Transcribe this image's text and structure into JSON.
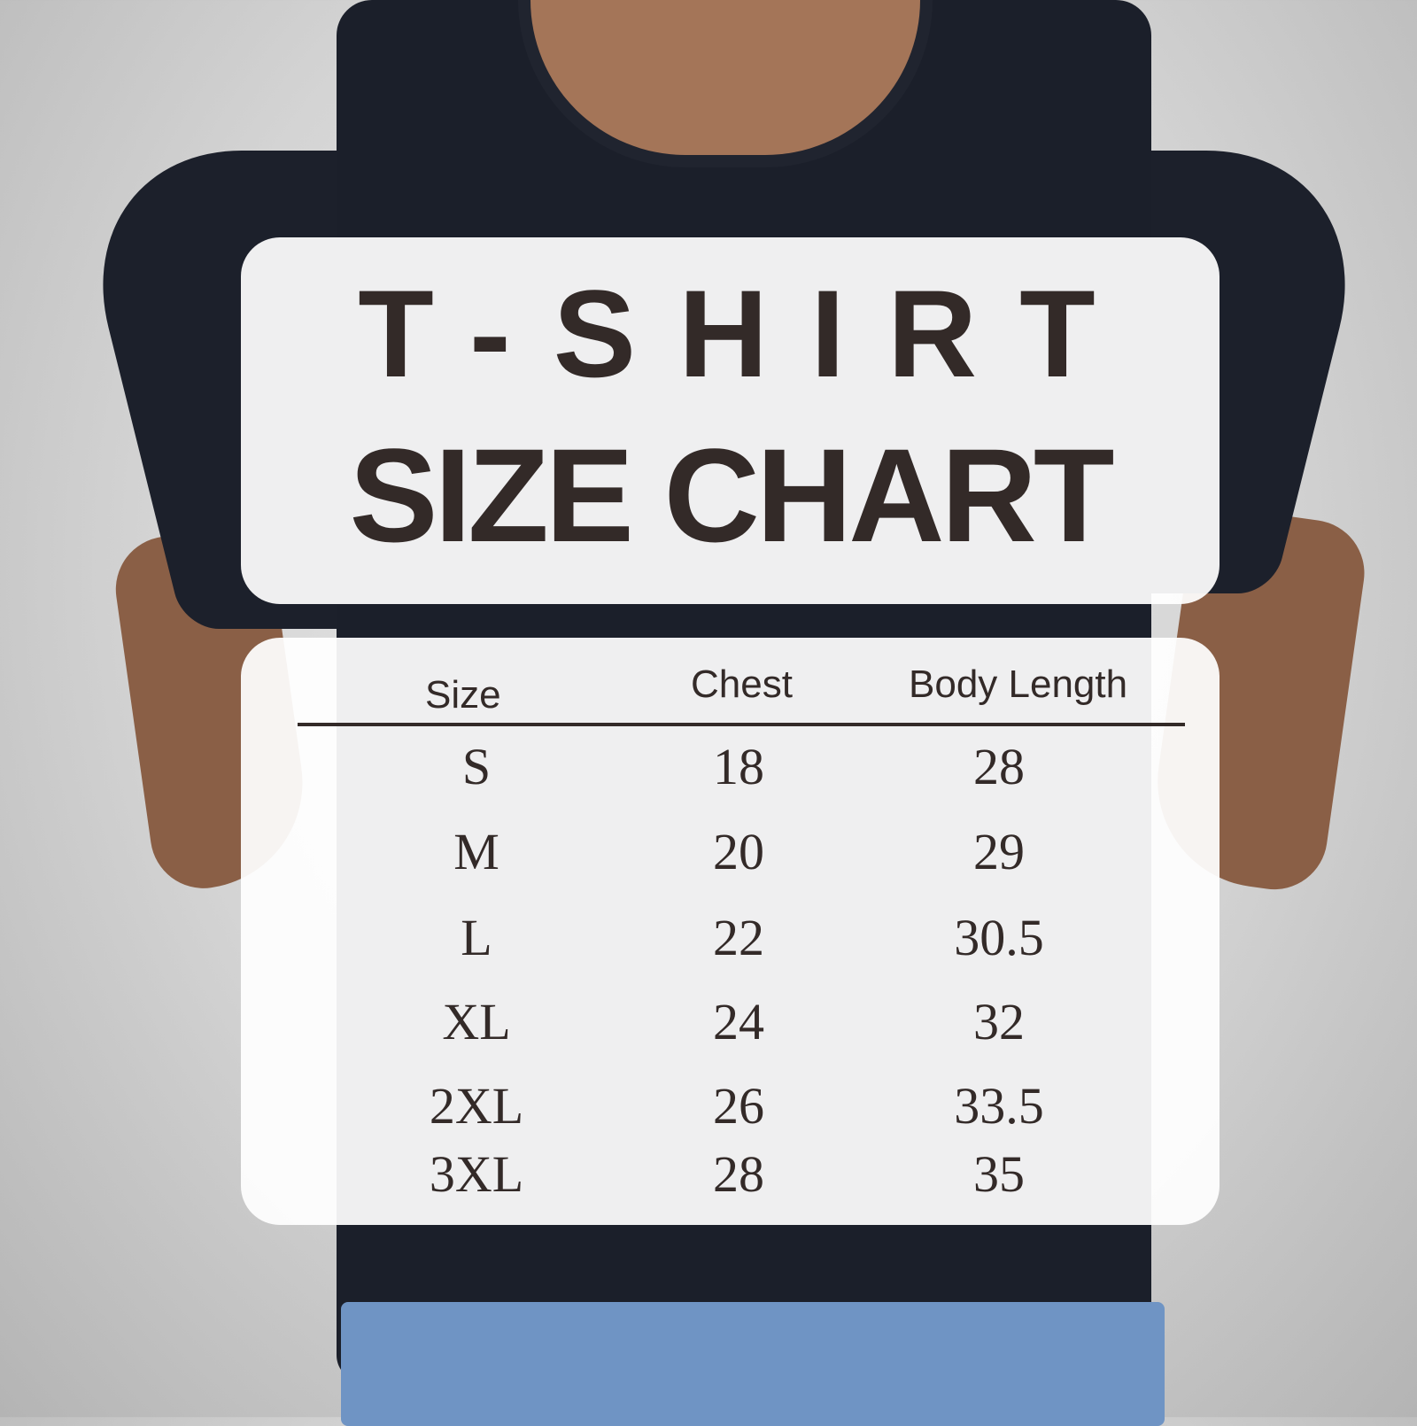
{
  "title": {
    "line1": "T-SHIRT",
    "line2": "SIZE CHART"
  },
  "table": {
    "headers": [
      "Size",
      "Chest",
      "Body Length"
    ],
    "rows": [
      [
        "S",
        "18",
        "28"
      ],
      [
        "M",
        "20",
        "29"
      ],
      [
        "L",
        "22",
        "30.5"
      ],
      [
        "XL",
        "24",
        "32"
      ],
      [
        "2XL",
        "26",
        "33.5"
      ],
      [
        "3XL",
        "28",
        "35"
      ]
    ]
  },
  "colors": {
    "text": "#332a28",
    "shirt": "#1b1f2a",
    "panel": "#ffffff"
  }
}
